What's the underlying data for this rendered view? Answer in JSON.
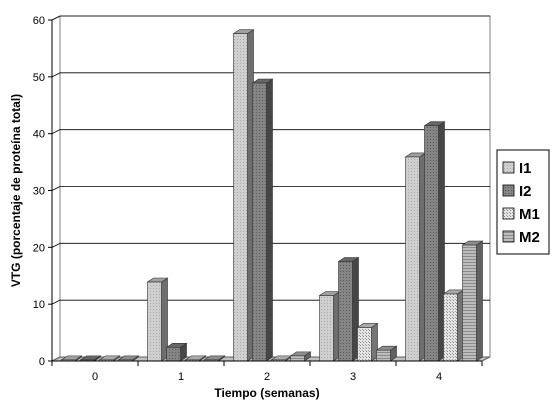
{
  "chart_data": {
    "type": "bar",
    "categories": [
      "0",
      "1",
      "2",
      "3",
      "4"
    ],
    "xlabel": "Tiempo (semanas)",
    "ylabel": "VTG (porcentaje de proteína total)",
    "ylim": [
      0,
      60
    ],
    "yticks": [
      "0",
      "10",
      "20",
      "30",
      "40",
      "50",
      "60"
    ],
    "grid": true,
    "legend_position": "right",
    "series": [
      {
        "name": "I1",
        "values": [
          0.2,
          13.9,
          57.6,
          11.5,
          35.9
        ],
        "color": "#c8c8c8"
      },
      {
        "name": "I2",
        "values": [
          0.2,
          2.4,
          48.9,
          17.5,
          41.4
        ],
        "color": "#808080"
      },
      {
        "name": "M1",
        "values": [
          0.2,
          0.2,
          0.2,
          5.9,
          11.8
        ],
        "color": "#d4d4d4"
      },
      {
        "name": "M2",
        "values": [
          0.2,
          0.2,
          0.9,
          1.9,
          20.4
        ],
        "color": "#b0b0b0"
      }
    ]
  }
}
